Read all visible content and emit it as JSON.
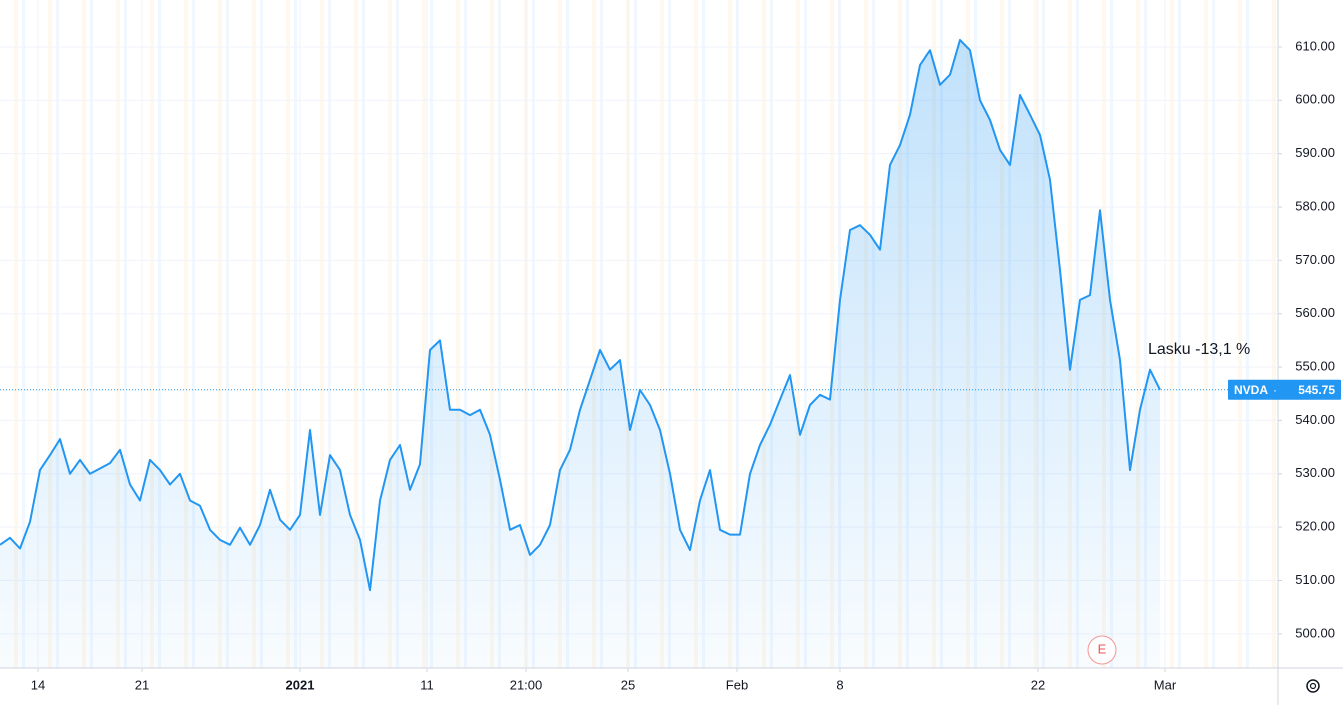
{
  "chart_data": {
    "type": "line",
    "series": [
      {
        "name": "NVDA",
        "color": "#2196f3",
        "values": [
          516.7,
          518,
          516,
          521,
          530.7,
          533.5,
          536.5,
          530,
          532.6,
          530,
          531,
          532,
          534.5,
          528,
          525,
          532.6,
          530.7,
          528,
          530,
          525,
          524,
          519.5,
          517.6,
          516.7,
          519.9,
          516.7,
          520.4,
          527,
          521.4,
          519.5,
          522.3,
          538.2,
          522.3,
          533.5,
          530.7,
          522.3,
          517.6,
          508.2,
          525,
          532.6,
          535.4,
          527,
          531.8,
          553.2,
          555,
          542,
          542,
          541,
          542,
          537.3,
          528.9,
          519.5,
          520.4,
          514.8,
          516.7,
          520.4,
          530.7,
          534.5,
          542,
          547.6,
          553.2,
          549.5,
          551.3,
          538.2,
          545.7,
          542.9,
          538.2,
          530,
          519.5,
          515.7,
          525,
          530.7,
          519.5,
          518.6,
          518.6,
          530,
          535.4,
          539.2,
          543.9,
          548.5,
          537.3,
          542.9,
          544.8,
          543.9,
          562.6,
          575.7,
          576.6,
          574.8,
          572,
          587.9,
          591.6,
          597.3,
          606.6,
          609.4,
          602.9,
          604.8,
          611.3,
          609.4,
          600,
          596.3,
          590.7,
          587.9,
          601,
          597.3,
          593.5,
          585.1,
          568.2,
          549.5,
          562.6,
          563.5,
          579.4,
          562.6,
          551.3,
          530.7,
          542,
          549.5,
          545.75
        ]
      }
    ],
    "xlim": [
      0,
      127.8
    ],
    "xticks": [
      {
        "value": 3.8,
        "label": "14"
      },
      {
        "value": 14.2,
        "label": "21"
      },
      {
        "value": 30.0,
        "label": "2021"
      },
      {
        "value": 42.7,
        "label": "11"
      },
      {
        "value": 52.6,
        "label": "21:00"
      },
      {
        "value": 62.8,
        "label": "25"
      },
      {
        "value": 73.7,
        "label": "Feb"
      },
      {
        "value": 84.0,
        "label": "8"
      },
      {
        "value": 103.8,
        "label": "22"
      },
      {
        "value": 116.5,
        "label": "Mar"
      }
    ],
    "ylim": [
      493.6,
      618.8
    ],
    "yticks": [
      {
        "value": 500,
        "label": "500.00"
      },
      {
        "value": 510,
        "label": "510.00"
      },
      {
        "value": 520,
        "label": "520.00"
      },
      {
        "value": 530,
        "label": "530.00"
      },
      {
        "value": 540,
        "label": "540.00"
      },
      {
        "value": 550,
        "label": "550.00"
      },
      {
        "value": 560,
        "label": "560.00"
      },
      {
        "value": 570,
        "label": "570.00"
      },
      {
        "value": 580,
        "label": "580.00"
      },
      {
        "value": 590,
        "label": "590.00"
      },
      {
        "value": 600,
        "label": "600.00"
      },
      {
        "value": 610,
        "label": "610.00"
      }
    ],
    "grid": true,
    "annotation": "Lasku -13,1 %",
    "last_price": {
      "symbol": "NVDA",
      "value": 545.75,
      "label": "545.75"
    },
    "earnings_marker": "E"
  }
}
